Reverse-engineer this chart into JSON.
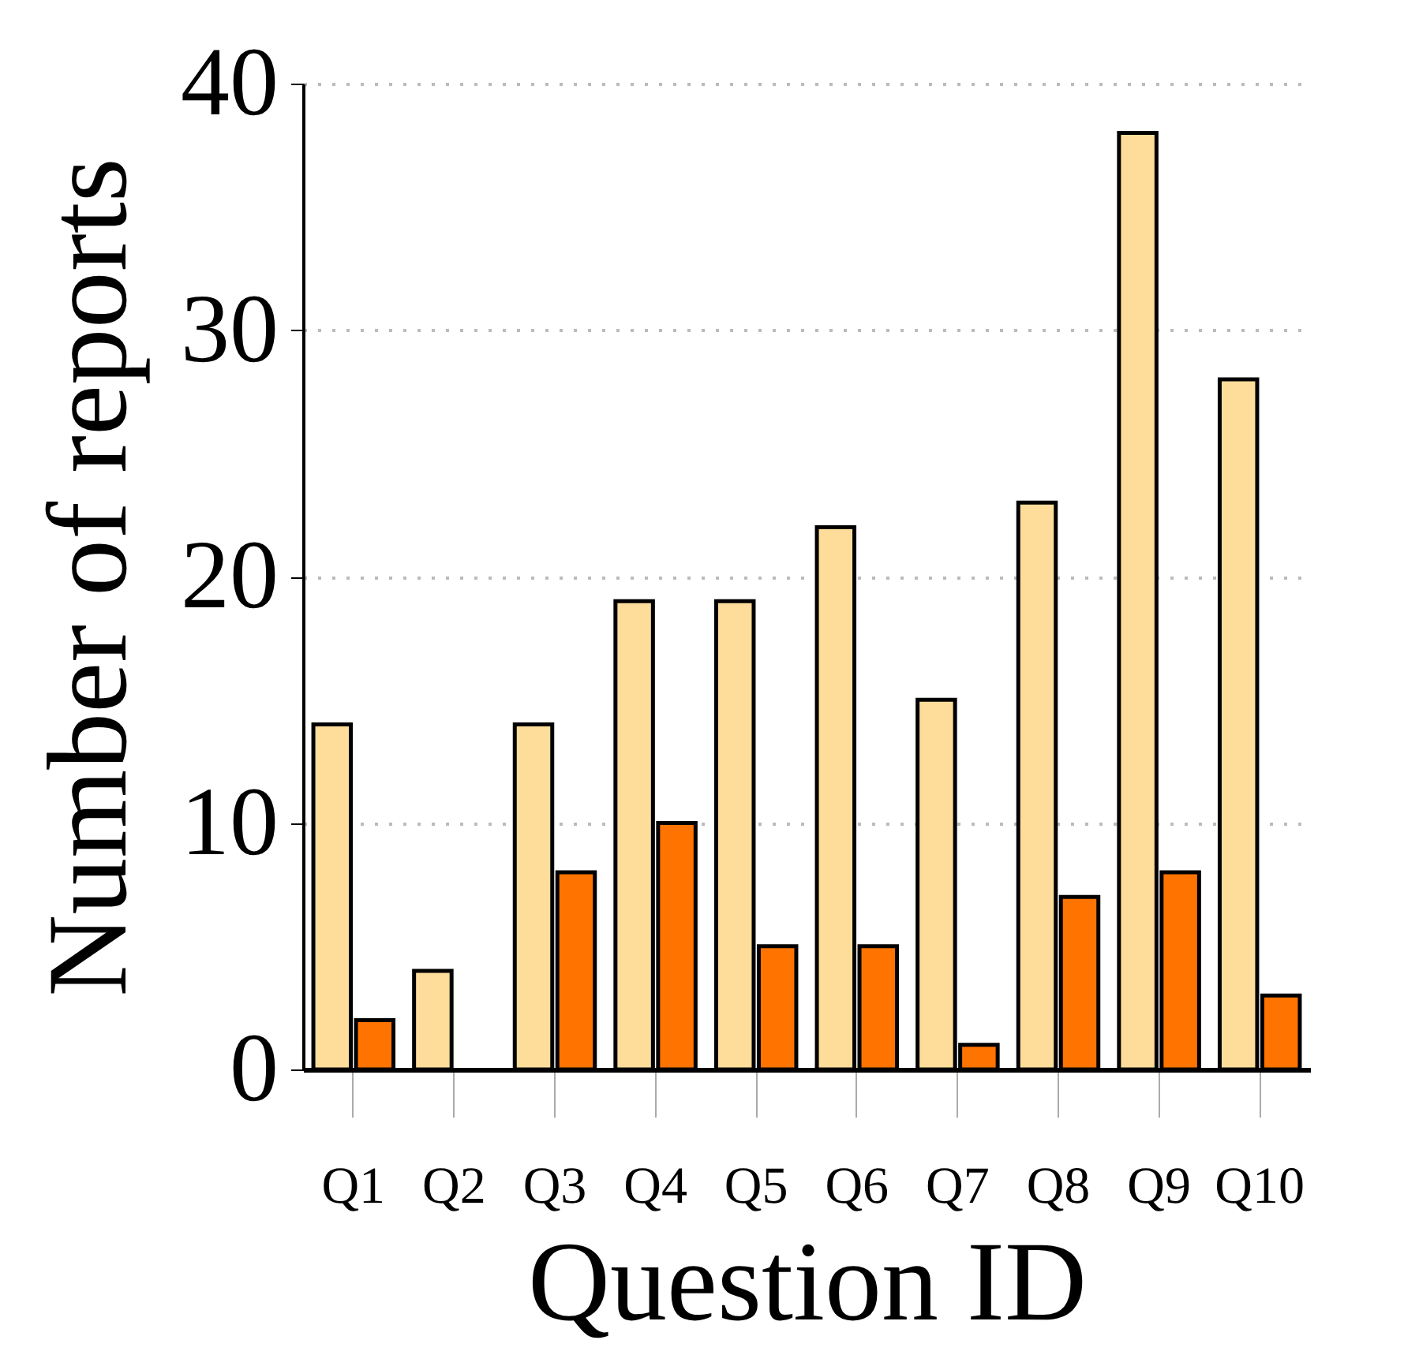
{
  "chart_data": {
    "type": "bar",
    "xlabel": "Question ID",
    "ylabel": "Number of reports",
    "categories": [
      "Q1",
      "Q2",
      "Q3",
      "Q4",
      "Q5",
      "Q6",
      "Q7",
      "Q8",
      "Q9",
      "Q10"
    ],
    "series": [
      {
        "color": "#fedd9b",
        "values": [
          14,
          4,
          14,
          19,
          19,
          22,
          15,
          23,
          38,
          28
        ]
      },
      {
        "color": "#ff7300",
        "values": [
          2,
          null,
          8,
          10,
          5,
          5,
          1,
          7,
          8,
          3
        ]
      }
    ],
    "ylim": [
      0,
      40
    ],
    "yticks": [
      0,
      10,
      20,
      30,
      40
    ],
    "grid": "y",
    "legend": false
  }
}
